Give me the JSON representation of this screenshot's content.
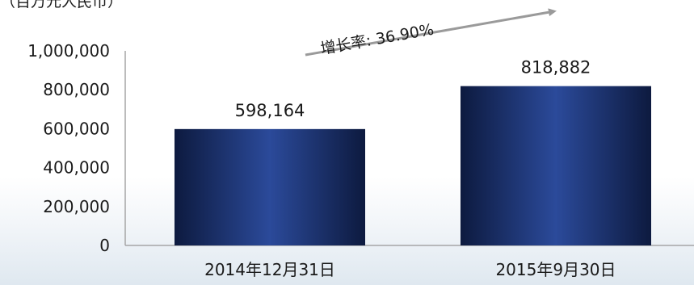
{
  "chart_data": {
    "type": "bar",
    "unit_label": "（百万元人民币）",
    "categories": [
      "2014年12月31日",
      "2015年9月30日"
    ],
    "values": [
      598164,
      818882
    ],
    "value_labels": [
      "598,164",
      "818,882"
    ],
    "ylim": [
      0,
      1000000
    ],
    "yticks": [
      0,
      200000,
      400000,
      600000,
      800000,
      1000000
    ],
    "ytick_labels": [
      "0",
      "200,000",
      "400,000",
      "600,000",
      "800,000",
      "1,000,000"
    ],
    "grid": false,
    "annotation": "增长率: 36.90%",
    "colors": {
      "bar_dark": "#0d1a3f",
      "bar_light": "#2b4a9a",
      "axis": "#a6a6a6",
      "arrow": "#9a9a9a",
      "text": "#1a1a1a"
    }
  }
}
